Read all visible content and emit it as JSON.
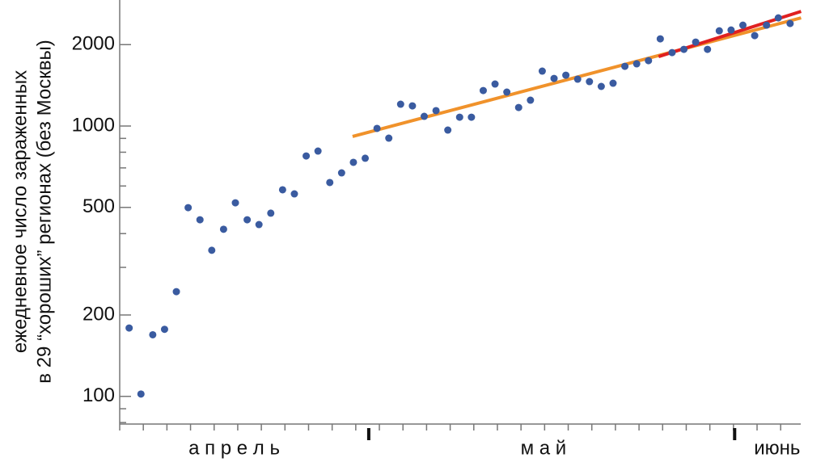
{
  "chart_data": {
    "type": "scatter",
    "y_label": [
      "ежедневное число зараженных",
      "в 29 “хороших” регионах (без Москвы)"
    ],
    "log_y": true,
    "ylim": [
      79,
      2925
    ],
    "yticks": [
      100,
      200,
      500,
      1000,
      2000
    ],
    "minor_yticks": [
      80,
      90,
      300,
      400,
      600,
      700,
      800,
      900
    ],
    "xlim": [
      0.2,
      57.9
    ],
    "xticks": [
      {
        "value": 9.9,
        "label": "а п р е л ь"
      },
      {
        "value": 36.1,
        "label": "м а й"
      },
      {
        "value": 55.9,
        "label": "июнь"
      }
    ],
    "month_boundaries": [
      21.3,
      52.3
    ],
    "minor_xticks": [
      0.2,
      2.2,
      4.2,
      6.2,
      8.2,
      10.2,
      12.2,
      14.2,
      16.2,
      18.2,
      20.2,
      22.2,
      24.2,
      26.2,
      28.2,
      30.2,
      32.2,
      34.2,
      36.2,
      38.2,
      40.2,
      42.2,
      44.2,
      46.2,
      48.2,
      50.2,
      52.2,
      54.2,
      56.2
    ],
    "points": {
      "color": "#3a5ba0",
      "x": [
        1,
        2,
        3,
        4,
        5,
        6,
        7,
        8,
        9,
        10,
        11,
        12,
        13,
        14,
        15,
        16,
        17,
        18,
        19,
        20,
        21,
        22,
        23,
        24,
        25,
        26,
        27,
        28,
        29,
        30,
        31,
        32,
        33,
        34,
        35,
        36,
        37,
        38,
        39,
        40,
        41,
        42,
        43,
        44,
        45,
        46,
        47,
        48,
        49,
        50,
        51,
        52,
        53,
        54,
        55,
        56,
        57
      ],
      "values": [
        179,
        102,
        169,
        177,
        244,
        499,
        450,
        347,
        415,
        520,
        450,
        432,
        476,
        581,
        561,
        775,
        808,
        618,
        671,
        734,
        760,
        980,
        902,
        1204,
        1187,
        1086,
        1140,
        966,
        1078,
        1078,
        1353,
        1430,
        1335,
        1171,
        1246,
        1596,
        1500,
        1542,
        1490,
        1460,
        1401,
        1440,
        1663,
        1698,
        1745,
        2101,
        1869,
        1921,
        2044,
        1921,
        2250,
        2265,
        2361,
        2160,
        2361,
        2512,
        2394
      ]
    },
    "fits": [
      {
        "color": "#f0922b",
        "x": [
          19.93,
          57.93
        ],
        "values": [
          915,
          2512
        ]
      },
      {
        "color": "#e02020",
        "x": [
          45.86,
          57.93
        ],
        "values": [
          1806,
          2654
        ]
      }
    ]
  }
}
